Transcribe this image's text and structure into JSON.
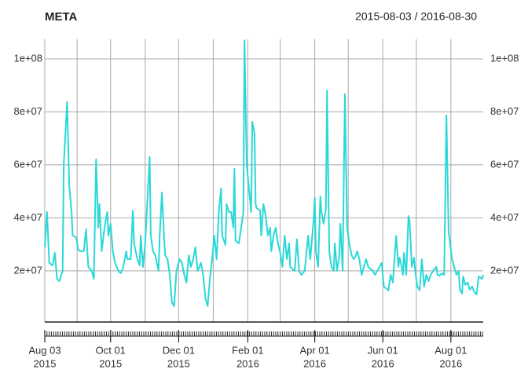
{
  "chart_data": {
    "type": "line",
    "title": "META",
    "subtitle": "2015-08-03 / 2016-08-30",
    "color": "#2ad8d8",
    "grid": true,
    "xlim": [
      "2015-08-03",
      "2016-08-30"
    ],
    "ylim": [
      700000,
      107400000
    ],
    "yticks": [
      {
        "value": 20000000,
        "label": "2e+07"
      },
      {
        "value": 40000000,
        "label": "4e+07"
      },
      {
        "value": 60000000,
        "label": "6e+07"
      },
      {
        "value": 80000000,
        "label": "8e+07"
      },
      {
        "value": 100000000,
        "label": "1e+08"
      }
    ],
    "xticks": [
      {
        "value": "2015-08-03",
        "label": [
          "Aug 03",
          "2015"
        ]
      },
      {
        "value": "2015-09-01",
        "label": null
      },
      {
        "value": "2015-10-01",
        "label": [
          "Oct 01",
          "2015"
        ]
      },
      {
        "value": "2015-11-01",
        "label": null
      },
      {
        "value": "2015-12-01",
        "label": [
          "Dec 01",
          "2015"
        ]
      },
      {
        "value": "2016-01-01",
        "label": null
      },
      {
        "value": "2016-02-01",
        "label": [
          "Feb 01",
          "2016"
        ]
      },
      {
        "value": "2016-03-01",
        "label": null
      },
      {
        "value": "2016-04-01",
        "label": [
          "Apr 01",
          "2016"
        ]
      },
      {
        "value": "2016-05-01",
        "label": null
      },
      {
        "value": "2016-06-01",
        "label": [
          "Jun 01",
          "2016"
        ]
      },
      {
        "value": "2016-07-01",
        "label": null
      },
      {
        "value": "2016-08-01",
        "label": [
          "Aug 01",
          "2016"
        ]
      }
    ],
    "x": [
      "2015-08-03",
      "2015-08-05",
      "2015-08-07",
      "2015-08-10",
      "2015-08-12",
      "2015-08-14",
      "2015-08-16",
      "2015-08-19",
      "2015-08-20",
      "2015-08-23",
      "2015-08-25",
      "2015-08-27",
      "2015-08-28",
      "2015-08-31",
      "2015-09-02",
      "2015-09-04",
      "2015-09-07",
      "2015-09-09",
      "2015-09-11",
      "2015-09-14",
      "2015-09-16",
      "2015-09-18",
      "2015-09-20",
      "2015-09-21",
      "2015-09-23",
      "2015-09-26",
      "2015-09-28",
      "2015-09-29",
      "2015-10-01",
      "2015-10-03",
      "2015-10-05",
      "2015-10-08",
      "2015-10-10",
      "2015-10-12",
      "2015-10-15",
      "2015-10-16",
      "2015-10-19",
      "2015-10-21",
      "2015-10-22",
      "2015-10-25",
      "2015-10-27",
      "2015-10-28",
      "2015-10-30",
      "2015-11-01",
      "2015-11-05",
      "2015-11-06",
      "2015-11-08",
      "2015-11-10",
      "2015-11-13",
      "2015-11-14",
      "2015-11-16",
      "2015-11-18",
      "2015-11-19",
      "2015-11-21",
      "2015-11-23",
      "2015-11-25",
      "2015-11-27",
      "2015-11-29",
      "2015-12-02",
      "2015-12-04",
      "2015-12-06",
      "2015-12-08",
      "2015-12-10",
      "2015-12-12",
      "2015-12-14",
      "2015-12-16",
      "2015-12-18",
      "2015-12-21",
      "2015-12-23",
      "2015-12-25",
      "2015-12-27",
      "2015-12-29",
      "2015-12-31",
      "2016-01-02",
      "2016-01-04",
      "2016-01-06",
      "2016-01-08",
      "2016-01-09",
      "2016-01-12",
      "2016-01-13",
      "2016-01-15",
      "2016-01-17",
      "2016-01-19",
      "2016-01-20",
      "2016-01-21",
      "2016-01-24",
      "2016-01-26",
      "2016-01-28",
      "2016-01-29",
      "2016-01-31",
      "2016-02-02",
      "2016-02-04",
      "2016-02-05",
      "2016-02-07",
      "2016-02-08",
      "2016-02-09",
      "2016-02-12",
      "2016-02-13",
      "2016-02-15",
      "2016-02-17",
      "2016-02-19",
      "2016-02-21",
      "2016-02-22",
      "2016-02-24",
      "2016-02-26",
      "2016-02-28",
      "2016-03-01",
      "2016-03-03",
      "2016-03-05",
      "2016-03-07",
      "2016-03-09",
      "2016-03-10",
      "2016-03-14",
      "2016-03-16",
      "2016-03-18",
      "2016-03-20",
      "2016-03-23",
      "2016-03-24",
      "2016-03-26",
      "2016-03-28",
      "2016-03-31",
      "2016-04-01",
      "2016-04-02",
      "2016-04-04",
      "2016-04-06",
      "2016-04-07",
      "2016-04-09",
      "2016-04-11",
      "2016-04-12",
      "2016-04-14",
      "2016-04-16",
      "2016-04-18",
      "2016-04-19",
      "2016-04-21",
      "2016-04-23",
      "2016-04-24",
      "2016-04-26",
      "2016-04-28",
      "2016-04-30",
      "2016-05-02",
      "2016-05-04",
      "2016-05-06",
      "2016-05-08",
      "2016-05-09",
      "2016-05-11",
      "2016-05-13",
      "2016-05-15",
      "2016-05-17",
      "2016-05-19",
      "2016-05-23",
      "2016-05-25",
      "2016-05-29",
      "2016-05-31",
      "2016-06-02",
      "2016-06-06",
      "2016-06-08",
      "2016-06-10",
      "2016-06-11",
      "2016-06-13",
      "2016-06-15",
      "2016-06-16",
      "2016-06-18",
      "2016-06-19",
      "2016-06-20",
      "2016-06-22",
      "2016-06-24",
      "2016-06-25",
      "2016-06-27",
      "2016-06-29",
      "2016-06-30",
      "2016-07-02",
      "2016-07-04",
      "2016-07-06",
      "2016-07-08",
      "2016-07-10",
      "2016-07-12",
      "2016-07-14",
      "2016-07-16",
      "2016-07-19",
      "2016-07-20",
      "2016-07-22",
      "2016-07-24",
      "2016-07-26",
      "2016-07-28",
      "2016-07-30",
      "2016-08-01",
      "2016-08-02",
      "2016-08-05",
      "2016-08-06",
      "2016-08-08",
      "2016-08-09",
      "2016-08-11",
      "2016-08-12",
      "2016-08-14",
      "2016-08-16",
      "2016-08-18",
      "2016-08-20",
      "2016-08-22",
      "2016-08-24",
      "2016-08-26",
      "2016-08-29",
      "2016-08-30"
    ],
    "values": [
      28900000,
      42200000,
      23000000,
      22100000,
      26800000,
      17000000,
      16100000,
      20000000,
      60000000,
      83700000,
      51700000,
      42200000,
      33300000,
      32700000,
      28000000,
      27400000,
      27400000,
      35700000,
      21500000,
      20000000,
      17000000,
      62100000,
      36300000,
      45200000,
      27400000,
      37800000,
      42200000,
      33300000,
      37800000,
      27400000,
      23000000,
      20000000,
      19100000,
      20900000,
      27400000,
      24400000,
      24400000,
      42800000,
      30400000,
      24400000,
      22100000,
      33300000,
      21500000,
      30400000,
      63000000,
      33300000,
      27400000,
      25900000,
      20000000,
      33300000,
      49600000,
      31900000,
      25900000,
      24400000,
      18500000,
      8100000,
      6700000,
      20000000,
      24400000,
      23000000,
      18500000,
      15600000,
      25900000,
      21500000,
      24400000,
      28900000,
      20000000,
      23000000,
      18500000,
      9600000,
      6700000,
      17000000,
      24400000,
      33300000,
      24400000,
      42200000,
      51100000,
      33300000,
      29800000,
      45200000,
      42200000,
      42200000,
      36300000,
      58500000,
      31300000,
      30400000,
      36300000,
      42200000,
      107000000,
      60000000,
      51100000,
      42200000,
      76300000,
      71900000,
      45200000,
      43700000,
      42800000,
      33300000,
      45200000,
      40700000,
      33300000,
      36300000,
      27400000,
      33300000,
      36300000,
      30400000,
      26800000,
      21500000,
      33300000,
      24400000,
      30400000,
      21500000,
      20000000,
      31900000,
      20000000,
      18500000,
      20000000,
      24400000,
      33300000,
      24400000,
      39300000,
      47600000,
      27400000,
      21500000,
      48100000,
      42200000,
      37800000,
      43700000,
      88100000,
      27400000,
      21500000,
      20000000,
      30400000,
      20000000,
      25900000,
      37800000,
      20000000,
      86700000,
      36300000,
      30400000,
      25900000,
      24400000,
      25900000,
      27400000,
      24400000,
      18500000,
      21500000,
      24400000,
      21500000,
      20000000,
      18500000,
      21500000,
      23000000,
      14100000,
      12600000,
      18500000,
      15600000,
      21500000,
      33300000,
      21500000,
      25000000,
      21500000,
      18500000,
      26800000,
      18500000,
      40700000,
      38700000,
      21500000,
      25000000,
      20000000,
      14100000,
      12600000,
      24400000,
      14100000,
      18500000,
      16100000,
      18500000,
      20000000,
      21500000,
      18500000,
      18200000,
      19100000,
      18500000,
      78700000,
      34800000,
      28000000,
      24400000,
      20000000,
      18500000,
      20000000,
      13200000,
      11400000,
      17900000,
      14700000,
      15600000,
      12900000,
      14100000,
      12000000,
      11100000,
      17900000,
      17000000,
      18500000
    ]
  }
}
